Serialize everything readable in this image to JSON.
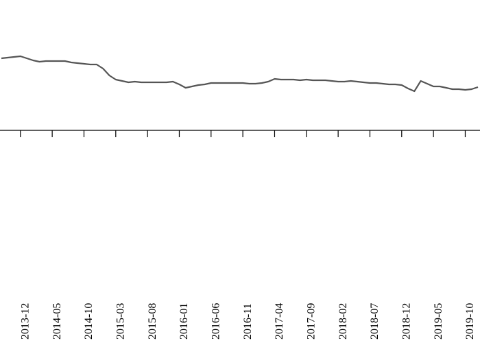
{
  "chart_data": {
    "type": "line",
    "x": [
      "2013-09",
      "2013-10",
      "2013-11",
      "2013-12",
      "2014-01",
      "2014-02",
      "2014-03",
      "2014-04",
      "2014-05",
      "2014-06",
      "2014-07",
      "2014-08",
      "2014-09",
      "2014-10",
      "2014-11",
      "2014-12",
      "2015-01",
      "2015-02",
      "2015-03",
      "2015-04",
      "2015-05",
      "2015-06",
      "2015-07",
      "2015-08",
      "2015-09",
      "2015-10",
      "2015-11",
      "2015-12",
      "2016-01",
      "2016-02",
      "2016-03",
      "2016-04",
      "2016-05",
      "2016-06",
      "2016-07",
      "2016-08",
      "2016-09",
      "2016-10",
      "2016-11",
      "2016-12",
      "2017-01",
      "2017-02",
      "2017-03",
      "2017-04",
      "2017-05",
      "2017-06",
      "2017-07",
      "2017-08",
      "2017-09",
      "2017-10",
      "2017-11",
      "2017-12",
      "2018-01",
      "2018-02",
      "2018-03",
      "2018-04",
      "2018-05",
      "2018-06",
      "2018-07",
      "2018-08",
      "2018-09",
      "2018-10",
      "2018-11",
      "2018-12",
      "2019-01",
      "2019-02",
      "2019-03",
      "2019-04",
      "2019-05",
      "2019-06",
      "2019-07",
      "2019-08",
      "2019-09",
      "2019-10",
      "2019-11",
      "2019-12"
    ],
    "series": [
      {
        "color": "#555555",
        "values": [
          105,
          106,
          107,
          108,
          105,
          102,
          100,
          101,
          101,
          101,
          101,
          99,
          98,
          97,
          96,
          96,
          90,
          80,
          74,
          72,
          70,
          71,
          70,
          70,
          70,
          70,
          70,
          71,
          67,
          62,
          64,
          66,
          67,
          69,
          69,
          69,
          69,
          69,
          69,
          68,
          68,
          69,
          71,
          75,
          74,
          74,
          74,
          73,
          74,
          73,
          73,
          73,
          72,
          71,
          71,
          72,
          71,
          70,
          69,
          69,
          68,
          67,
          67,
          66,
          61,
          57,
          72,
          68,
          64,
          64,
          62,
          60,
          60,
          59,
          60,
          63
        ]
      }
    ],
    "xlim": [
      "2013-09",
      "2019-12"
    ],
    "ylim": [
      0,
      190
    ],
    "xticks": [
      "2013-12",
      "2014-05",
      "2014-10",
      "2015-03",
      "2015-08",
      "2016-01",
      "2016-06",
      "2016-11",
      "2017-04",
      "2017-09",
      "2018-02",
      "2018-07",
      "2018-12",
      "2019-05",
      "2019-10"
    ]
  }
}
